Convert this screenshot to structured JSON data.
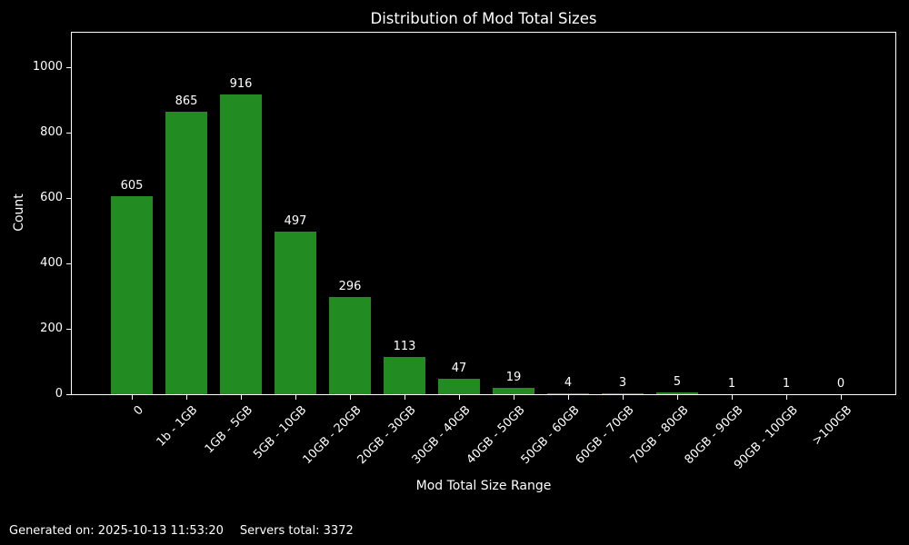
{
  "chart_data": {
    "type": "bar",
    "title": "Distribution of Mod Total Sizes",
    "xlabel": "Mod Total Size Range",
    "ylabel": "Count",
    "categories": [
      "0",
      "1b - 1GB",
      "1GB - 5GB",
      "5GB - 10GB",
      "10GB - 20GB",
      "20GB - 30GB",
      "30GB - 40GB",
      "40GB - 50GB",
      "50GB - 60GB",
      "60GB - 70GB",
      "70GB - 80GB",
      "80GB - 90GB",
      "90GB - 100GB",
      ">100GB"
    ],
    "values": [
      605,
      865,
      916,
      497,
      296,
      113,
      47,
      19,
      4,
      3,
      5,
      1,
      1,
      0
    ],
    "yticks": [
      0,
      200,
      400,
      600,
      800,
      1000
    ],
    "ylim": [
      0,
      1106
    ],
    "grid": false,
    "legend": null,
    "bar_color": "#228B22",
    "background_color": "#000000",
    "text_color": "#ffffff",
    "spine_color": "#ffffff"
  },
  "footer": {
    "generated_on": "Generated on: 2025-10-13 11:53:20",
    "servers_total": "Servers total: 3372"
  }
}
